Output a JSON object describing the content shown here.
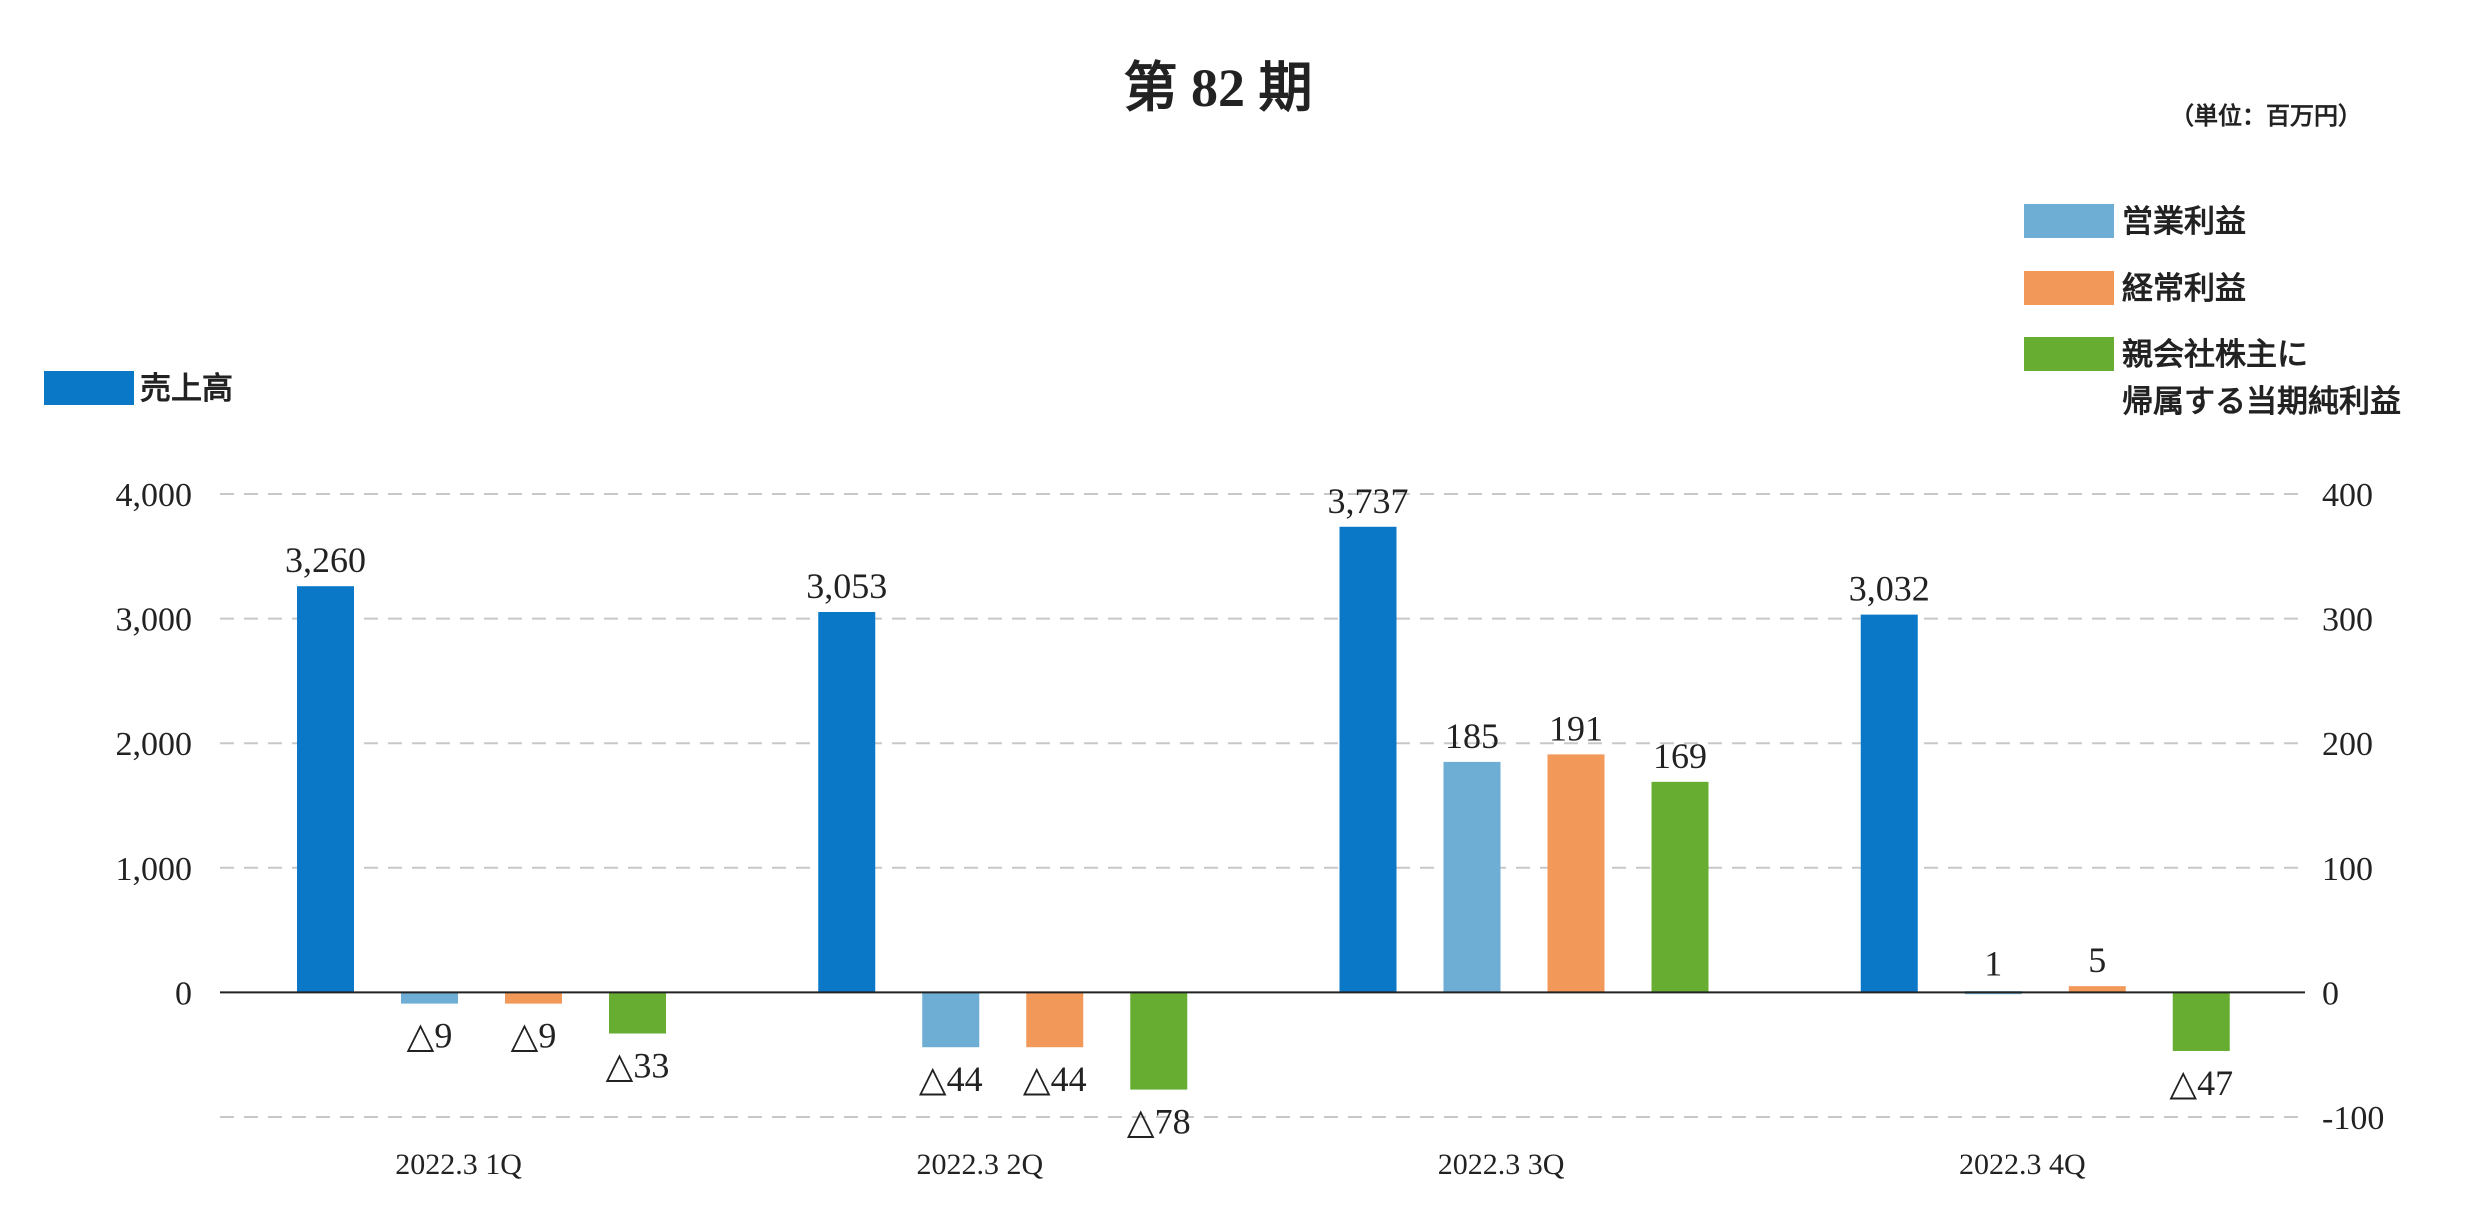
{
  "chart_data": {
    "type": "bar",
    "title": "第 82 期",
    "unit_note": "（単位：百万円）",
    "categories": [
      "2022.3 1Q",
      "2022.3 2Q",
      "2022.3 3Q",
      "2022.3 4Q"
    ],
    "y_left": {
      "ticks": [
        "4,000",
        "3,000",
        "2,000",
        "1,000",
        "0"
      ],
      "ylim": [
        -1000,
        4000
      ]
    },
    "y_right": {
      "ticks": [
        "400",
        "300",
        "200",
        "100",
        "0",
        "-100"
      ],
      "ylim": [
        -100,
        400
      ]
    },
    "grid": true,
    "series": [
      {
        "name": "売上高",
        "axis": "left",
        "color": "#0a78c7",
        "values": [
          3260,
          3053,
          3737,
          3032
        ],
        "labels": [
          "3,260",
          "3,053",
          "3,737",
          "3,032"
        ]
      },
      {
        "name": "営業利益",
        "axis": "right",
        "color": "#6eaed4",
        "values": [
          -9,
          -44,
          185,
          1
        ],
        "labels": [
          "△9",
          "△44",
          "185",
          "1"
        ]
      },
      {
        "name": "経常利益",
        "axis": "right",
        "color": "#f29859",
        "values": [
          -9,
          -44,
          191,
          5
        ],
        "labels": [
          "△9",
          "△44",
          "191",
          "5"
        ]
      },
      {
        "name": "親会社株主に帰属する当期純利益",
        "axis": "right",
        "color": "#66ad32",
        "values": [
          -33,
          -78,
          169,
          -47
        ],
        "labels": [
          "△33",
          "△78",
          "169",
          "△47"
        ],
        "legend_lines": [
          "親会社株主に",
          "帰属する当期純利益"
        ]
      }
    ]
  }
}
